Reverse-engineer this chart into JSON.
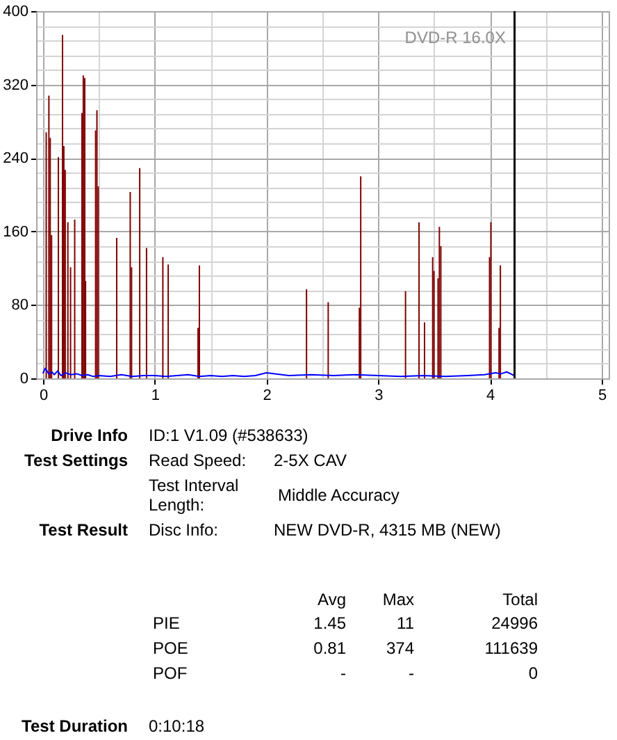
{
  "chart_data": {
    "type": "bar",
    "xlim": [
      0,
      5
    ],
    "xticks": [
      0,
      {
        "value": 0.5,
        "label": null
      },
      1,
      {
        "value": 1.5,
        "label": null
      },
      2,
      {
        "value": 2.5,
        "label": null
      },
      3,
      {
        "value": 3.5,
        "label": null
      },
      4,
      {
        "value": 4.5,
        "label": null
      },
      5
    ],
    "ylim": [
      0,
      400
    ],
    "yticks": [
      0,
      {
        "value": 16,
        "label": null
      },
      {
        "value": 32,
        "label": null
      },
      {
        "value": 48,
        "label": null
      },
      {
        "value": 64,
        "label": null
      },
      80,
      {
        "value": 96,
        "label": null
      },
      {
        "value": 112,
        "label": null
      },
      {
        "value": 128,
        "label": null
      },
      {
        "value": 144,
        "label": null
      },
      160,
      {
        "value": 176,
        "label": null
      },
      {
        "value": 192,
        "label": null
      },
      {
        "value": 208,
        "label": null
      },
      {
        "value": 224,
        "label": null
      },
      240,
      {
        "value": 256,
        "label": null
      },
      {
        "value": 272,
        "label": null
      },
      {
        "value": 288,
        "label": null
      },
      {
        "value": 304,
        "label": null
      },
      320,
      {
        "value": 336,
        "label": null
      },
      {
        "value": 352,
        "label": null
      },
      {
        "value": 368,
        "label": null
      },
      {
        "value": 384,
        "label": null
      },
      400
    ],
    "grid": true,
    "series": [
      {
        "color": "#800000",
        "x": [
          0.028,
          0.052,
          0.064,
          0.076,
          0.137,
          0.174,
          0.186,
          0.198,
          0.222,
          0.246,
          0.283,
          0.348,
          0.36,
          0.373,
          0.38,
          0.47,
          0.482,
          0.494,
          0.659,
          0.78,
          0.792,
          0.865,
          0.926,
          1.072,
          1.12,
          1.387,
          1.399,
          2.358,
          2.552,
          2.831,
          2.843,
          3.244,
          3.365,
          3.414,
          3.487,
          3.499,
          3.535,
          3.547,
          3.56,
          3.996,
          4.008,
          4.081,
          4.093
        ],
        "values": [
          268,
          308,
          262,
          156,
          241,
          374,
          253,
          227,
          170,
          121,
          173,
          289,
          330,
          327,
          106,
          270,
          292,
          209,
          153,
          203,
          121,
          229,
          142,
          132,
          124,
          55,
          123,
          97,
          83,
          77,
          220,
          95,
          170,
          61,
          132,
          117,
          109,
          165,
          144,
          132,
          170,
          55,
          123
        ]
      },
      {
        "type": "line",
        "color": "#0000ff",
        "x": [
          0,
          0.02,
          0.05,
          0.08,
          0.1,
          0.13,
          0.16,
          0.2,
          0.25,
          0.3,
          0.35,
          0.4,
          0.45,
          0.5,
          0.6,
          0.7,
          0.8,
          0.9,
          1.0,
          1.1,
          1.2,
          1.3,
          1.4,
          1.5,
          1.6,
          1.7,
          1.8,
          1.9,
          2.0,
          2.2,
          2.4,
          2.6,
          2.8,
          3.0,
          3.2,
          3.4,
          3.6,
          3.8,
          3.95,
          4.05,
          4.1,
          4.15,
          4.2,
          4.22
        ],
        "values": [
          6,
          11,
          5,
          7,
          4,
          8,
          3,
          6,
          4,
          5,
          3,
          4,
          2,
          3,
          2,
          4,
          2,
          3,
          3,
          2,
          3,
          4,
          2,
          3,
          2,
          3,
          2,
          3,
          6,
          3,
          4,
          3,
          4,
          3,
          2,
          3,
          2,
          3,
          4,
          6,
          5,
          7,
          4,
          3
        ]
      }
    ],
    "ref_lines": [
      {
        "axis": "x",
        "value": 4.22,
        "color": "#000000"
      }
    ],
    "annotations": [
      "DVD-R   16.0X",
      "Drive Info",
      "ID:1 V1.09 (#538633)",
      "Test Settings",
      "Read Speed:",
      "2-5X CAV",
      "Test Interval Length:",
      "Middle Accuracy",
      "Test Result",
      "Disc Info:",
      "NEW DVD-R, 4315 MB (NEW)",
      "Avg",
      "Max",
      "Total",
      "PIE",
      "1.45",
      "11",
      "24996",
      "POE",
      "0.81",
      "374",
      "111639",
      "POF",
      "-",
      "-",
      "0",
      "Test Duration",
      "0:10:18"
    ]
  }
}
